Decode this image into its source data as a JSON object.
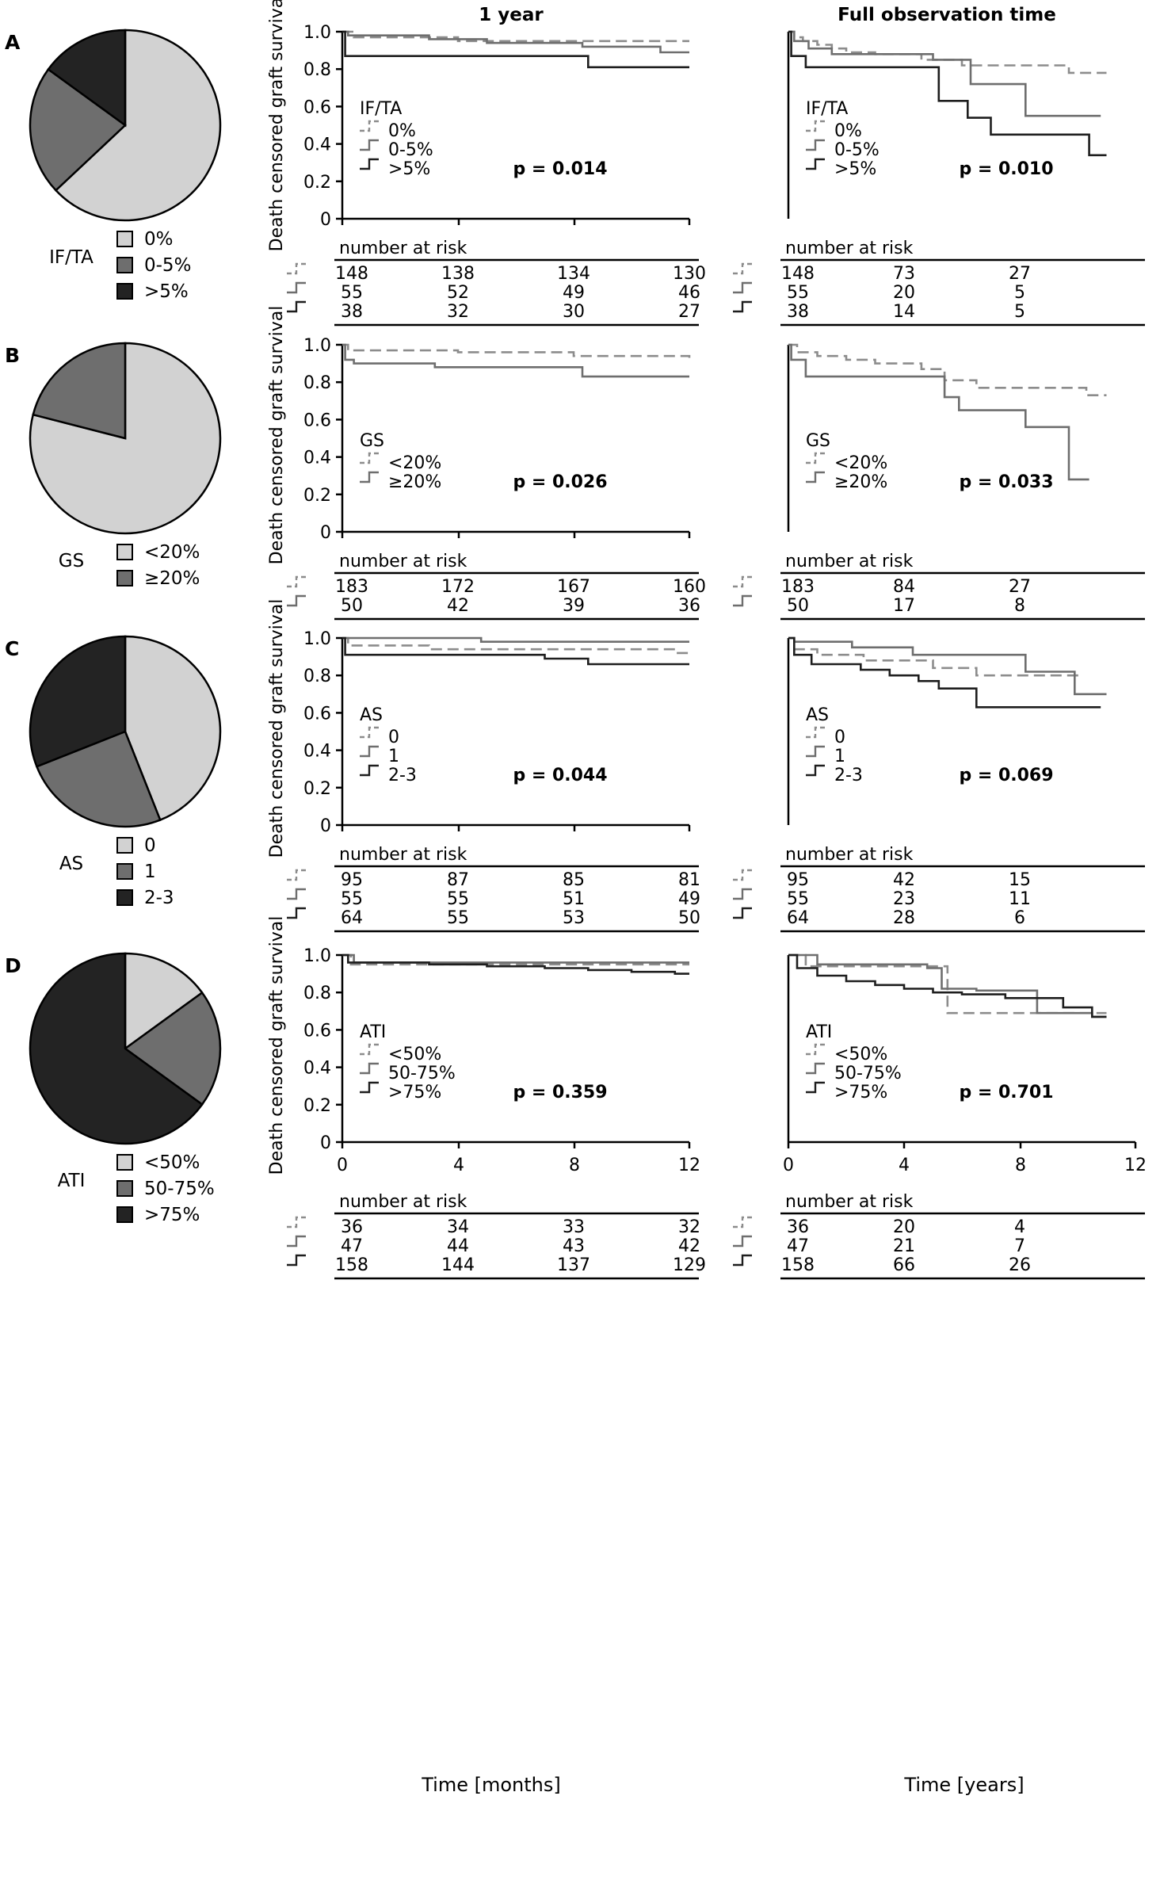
{
  "column_titles": [
    "1 year",
    "Full observation time"
  ],
  "y_axis_label": "Death censored graft survival",
  "risk_header": "number at risk",
  "colors": {
    "g0": "#8c8c8c",
    "g1": "#6e6e6e",
    "g2": "#1e1e1e",
    "pie0": "#d2d2d2",
    "pie1": "#6e6e6e",
    "pie2": "#232323"
  },
  "chart_data": [
    {
      "panel": "A",
      "variable": "IF/TA",
      "type": "line",
      "groups": [
        "0%",
        "0-5%",
        ">5%"
      ],
      "pie_fractions": [
        0.63,
        0.22,
        0.15
      ],
      "y_ticks": [
        "0",
        "0.2",
        "0.4",
        "0.6",
        "0.8",
        "1.0"
      ],
      "ylim": [
        0,
        1
      ],
      "one_year": {
        "xlim": [
          0,
          12
        ],
        "p_value": "p = 0.014",
        "risk_x": [
          0,
          4,
          8,
          12
        ],
        "risk": [
          [
            "148",
            "138",
            "134",
            "130"
          ],
          [
            "55",
            "52",
            "49",
            "46"
          ],
          [
            "38",
            "32",
            "30",
            "27"
          ]
        ],
        "series": [
          {
            "name": "0%",
            "x": [
              0,
              0.4,
              4,
              12
            ],
            "y": [
              1.0,
              0.97,
              0.95,
              0.95
            ]
          },
          {
            "name": "0-5%",
            "x": [
              0,
              0.2,
              3,
              5,
              8.3,
              11,
              12
            ],
            "y": [
              1.0,
              0.98,
              0.96,
              0.94,
              0.92,
              0.89,
              0.89
            ]
          },
          {
            "name": ">5%",
            "x": [
              0,
              0.1,
              8,
              8.5,
              12
            ],
            "y": [
              1.0,
              0.87,
              0.87,
              0.81,
              0.81
            ]
          }
        ]
      },
      "full": {
        "xlim": [
          0,
          12
        ],
        "p_value": "p = 0.010",
        "risk_x": [
          0,
          4,
          8
        ],
        "risk": [
          [
            "148",
            "73",
            "27"
          ],
          [
            "55",
            "20",
            "5"
          ],
          [
            "38",
            "14",
            "5"
          ]
        ],
        "series": [
          {
            "name": "0%",
            "x": [
              0,
              0.2,
              0.5,
              1,
              1.5,
              2,
              3,
              4.6,
              6,
              9.7,
              11
            ],
            "y": [
              1.0,
              0.97,
              0.95,
              0.93,
              0.91,
              0.89,
              0.88,
              0.85,
              0.82,
              0.78,
              0.78
            ]
          },
          {
            "name": "0-5%",
            "x": [
              0,
              0.2,
              0.7,
              1.5,
              5,
              6.3,
              8.2,
              10.8
            ],
            "y": [
              1.0,
              0.95,
              0.91,
              0.88,
              0.85,
              0.72,
              0.55,
              0.55
            ]
          },
          {
            "name": ">5%",
            "x": [
              0,
              0.1,
              0.6,
              4.9,
              5.2,
              6.2,
              7,
              10.4,
              11
            ],
            "y": [
              1.0,
              0.87,
              0.81,
              0.81,
              0.63,
              0.54,
              0.45,
              0.34,
              0.34
            ]
          }
        ]
      }
    },
    {
      "panel": "B",
      "variable": "GS",
      "type": "line",
      "groups": [
        "<20%",
        "≥20%"
      ],
      "pie_fractions": [
        0.79,
        0.21
      ],
      "y_ticks": [
        "0",
        "0.2",
        "0.4",
        "0.6",
        "0.8",
        "1.0"
      ],
      "ylim": [
        0,
        1
      ],
      "one_year": {
        "xlim": [
          0,
          12
        ],
        "p_value": "p = 0.026",
        "risk_x": [
          0,
          4,
          8,
          12
        ],
        "risk": [
          [
            "183",
            "172",
            "167",
            "160"
          ],
          [
            "50",
            "42",
            "39",
            "36"
          ]
        ],
        "series": [
          {
            "name": "<20%",
            "x": [
              0,
              0.2,
              4,
              8,
              12
            ],
            "y": [
              1.0,
              0.97,
              0.96,
              0.94,
              0.93
            ]
          },
          {
            "name": "≥20%",
            "x": [
              0,
              0.1,
              0.4,
              3.2,
              8.3,
              12
            ],
            "y": [
              1.0,
              0.92,
              0.9,
              0.88,
              0.83,
              0.83
            ]
          }
        ]
      },
      "full": {
        "xlim": [
          0,
          12
        ],
        "p_value": "p = 0.033",
        "risk_x": [
          0,
          4,
          8
        ],
        "risk": [
          [
            "183",
            "84",
            "27"
          ],
          [
            "50",
            "17",
            "8"
          ]
        ],
        "series": [
          {
            "name": "<20%",
            "x": [
              0,
              0.3,
              1,
              2,
              3,
              4.6,
              5.4,
              6.5,
              10.3,
              11
            ],
            "y": [
              1.0,
              0.96,
              0.94,
              0.92,
              0.9,
              0.87,
              0.81,
              0.77,
              0.73,
              0.73
            ]
          },
          {
            "name": "≥20%",
            "x": [
              0,
              0.1,
              0.6,
              5,
              5.4,
              5.9,
              8.2,
              9.7,
              10.4
            ],
            "y": [
              1.0,
              0.92,
              0.83,
              0.83,
              0.72,
              0.65,
              0.56,
              0.28,
              0.28
            ]
          }
        ]
      }
    },
    {
      "panel": "C",
      "variable": "AS",
      "type": "line",
      "groups": [
        "0",
        "1",
        "2-3"
      ],
      "pie_fractions": [
        0.44,
        0.25,
        0.31
      ],
      "y_ticks": [
        "0",
        "0.2",
        "0.4",
        "0.6",
        "0.8",
        "1.0"
      ],
      "ylim": [
        0,
        1
      ],
      "one_year": {
        "xlim": [
          0,
          12
        ],
        "p_value": "p = 0.044",
        "risk_x": [
          0,
          4,
          8,
          12
        ],
        "risk": [
          [
            "95",
            "87",
            "85",
            "81"
          ],
          [
            "55",
            "55",
            "51",
            "49"
          ],
          [
            "64",
            "55",
            "53",
            "50"
          ]
        ],
        "series": [
          {
            "name": "0",
            "x": [
              0,
              0.2,
              3,
              11.5,
              12
            ],
            "y": [
              1.0,
              0.96,
              0.94,
              0.92,
              0.92
            ]
          },
          {
            "name": "1",
            "x": [
              0,
              4.8,
              12
            ],
            "y": [
              1.0,
              0.98,
              0.98
            ]
          },
          {
            "name": "2-3",
            "x": [
              0,
              0.1,
              7,
              8.5,
              12
            ],
            "y": [
              1.0,
              0.91,
              0.89,
              0.86,
              0.86
            ]
          }
        ]
      },
      "full": {
        "xlim": [
          0,
          12
        ],
        "p_value": "p = 0.069",
        "risk_x": [
          0,
          4,
          8
        ],
        "risk": [
          [
            "95",
            "42",
            "15"
          ],
          [
            "55",
            "23",
            "11"
          ],
          [
            "64",
            "28",
            "6"
          ]
        ],
        "series": [
          {
            "name": "0",
            "x": [
              0,
              0.2,
              1,
              2.6,
              5,
              6.5,
              9.9,
              10.2
            ],
            "y": [
              1.0,
              0.94,
              0.91,
              0.88,
              0.84,
              0.8,
              0.8,
              0.8
            ]
          },
          {
            "name": "1",
            "x": [
              0,
              0.2,
              2.2,
              4.3,
              8.2,
              9.9,
              11
            ],
            "y": [
              1.0,
              0.98,
              0.95,
              0.91,
              0.82,
              0.7,
              0.7
            ]
          },
          {
            "name": "2-3",
            "x": [
              0,
              0.2,
              0.8,
              2.5,
              3.5,
              4.5,
              5.2,
              6.5,
              10.8
            ],
            "y": [
              1.0,
              0.91,
              0.86,
              0.83,
              0.8,
              0.77,
              0.73,
              0.63,
              0.63
            ]
          }
        ]
      }
    },
    {
      "panel": "D",
      "variable": "ATI",
      "type": "line",
      "groups": [
        "<50%",
        "50-75%",
        ">75%"
      ],
      "pie_fractions": [
        0.15,
        0.2,
        0.65
      ],
      "y_ticks": [
        "0",
        "0.2",
        "0.4",
        "0.6",
        "0.8",
        "1.0"
      ],
      "ylim": [
        0,
        1
      ],
      "one_year": {
        "xlim": [
          0,
          12
        ],
        "p_value": "p = 0.359",
        "risk_x": [
          0,
          4,
          8,
          12
        ],
        "risk": [
          [
            "36",
            "34",
            "33",
            "32"
          ],
          [
            "47",
            "44",
            "43",
            "42"
          ],
          [
            "158",
            "144",
            "137",
            "129"
          ]
        ],
        "series": [
          {
            "name": "<50%",
            "x": [
              0,
              0.3,
              12
            ],
            "y": [
              1.0,
              0.95,
              0.95
            ]
          },
          {
            "name": "50-75%",
            "x": [
              0,
              0.4,
              12
            ],
            "y": [
              1.0,
              0.96,
              0.96
            ]
          },
          {
            "name": ">75%",
            "x": [
              0,
              0.2,
              3,
              5,
              7,
              8.5,
              10,
              11.5,
              12
            ],
            "y": [
              1.0,
              0.96,
              0.95,
              0.94,
              0.93,
              0.92,
              0.91,
              0.9,
              0.9
            ]
          }
        ]
      },
      "full": {
        "xlim": [
          0,
          12
        ],
        "p_value": "p = 0.701",
        "risk_x": [
          0,
          4,
          8
        ],
        "risk": [
          [
            "36",
            "20",
            "4"
          ],
          [
            "47",
            "21",
            "7"
          ],
          [
            "158",
            "66",
            "26"
          ]
        ],
        "series": [
          {
            "name": "<50%",
            "x": [
              0,
              0.6,
              5,
              5.5,
              8.1,
              10.5,
              11
            ],
            "y": [
              1.0,
              0.94,
              0.94,
              0.69,
              0.69,
              0.69,
              0.69
            ]
          },
          {
            "name": "50-75%",
            "x": [
              0,
              1,
              4.8,
              5.3,
              6.5,
              8.2,
              8.6,
              10.5,
              11
            ],
            "y": [
              1.0,
              0.95,
              0.93,
              0.82,
              0.81,
              0.81,
              0.69,
              0.67,
              0.67
            ]
          },
          {
            "name": ">75%",
            "x": [
              0,
              0.3,
              1,
              2,
              3,
              4,
              5,
              6,
              7.5,
              9.5,
              10.5,
              11
            ],
            "y": [
              1.0,
              0.93,
              0.89,
              0.86,
              0.84,
              0.82,
              0.8,
              0.79,
              0.77,
              0.72,
              0.67,
              0.67
            ]
          }
        ]
      }
    }
  ],
  "x_labels": [
    "Time [months]",
    "Time [years]"
  ],
  "x_ticks": [
    "0",
    "4",
    "8",
    "12"
  ]
}
